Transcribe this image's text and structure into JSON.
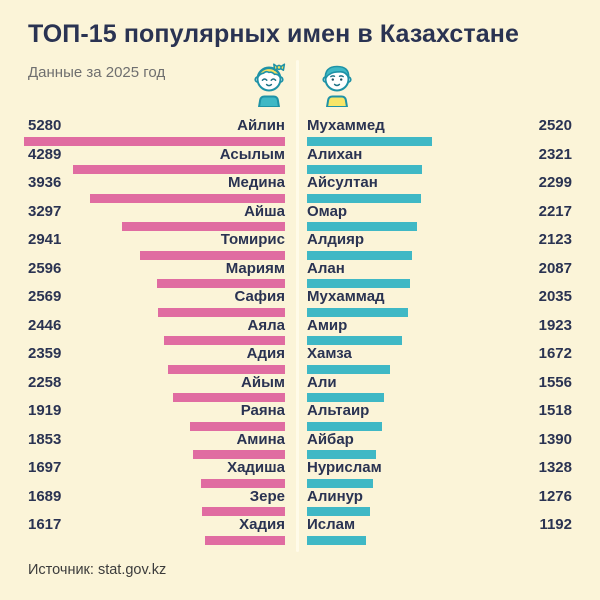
{
  "page": {
    "title": "ТОП-15 популярных имен в Казахстане",
    "subtitle": "Данные за 2025 год",
    "source": "Источник: stat.gov.kz"
  },
  "icons": {
    "left": "baby-girl-icon",
    "right": "baby-boy-icon"
  },
  "colors": {
    "background": "#FBF4D8",
    "divider": "#FFFBE9",
    "girls_bar": "#E06CA1",
    "boys_bar": "#3FB8C5",
    "text": "#2A3352",
    "subtitle_text": "#6F6F6F",
    "source_text": "#3C3C3C"
  },
  "chart_data": {
    "type": "bar",
    "orientation": "horizontal",
    "title": "ТОП-15 популярных имен в Казахстане",
    "subtitle": "Данные за 2025 год",
    "source": "Источник: stat.gov.kz",
    "max_value": 5280,
    "legend": "icons only (girl / boy)",
    "series": [
      {
        "name": "girls",
        "side": "left",
        "color": "#E06CA1",
        "items": [
          {
            "label": "Айлин",
            "value": 5280
          },
          {
            "label": "Асылым",
            "value": 4289
          },
          {
            "label": "Медина",
            "value": 3936
          },
          {
            "label": "Айша",
            "value": 3297
          },
          {
            "label": "Томирис",
            "value": 2941
          },
          {
            "label": "Мариям",
            "value": 2596
          },
          {
            "label": "Сафия",
            "value": 2569
          },
          {
            "label": "Аяла",
            "value": 2446
          },
          {
            "label": "Адия",
            "value": 2359
          },
          {
            "label": "Айым",
            "value": 2258
          },
          {
            "label": "Раяна",
            "value": 1919
          },
          {
            "label": "Амина",
            "value": 1853
          },
          {
            "label": "Хадиша",
            "value": 1697
          },
          {
            "label": "Зере",
            "value": 1689
          },
          {
            "label": "Хадия",
            "value": 1617
          }
        ]
      },
      {
        "name": "boys",
        "side": "right",
        "color": "#3FB8C5",
        "items": [
          {
            "label": "Мухаммед",
            "value": 2520
          },
          {
            "label": "Алихан",
            "value": 2321
          },
          {
            "label": "Айсултан",
            "value": 2299
          },
          {
            "label": "Омар",
            "value": 2217
          },
          {
            "label": "Алдияр",
            "value": 2123
          },
          {
            "label": "Алан",
            "value": 2087
          },
          {
            "label": "Мухаммад",
            "value": 2035
          },
          {
            "label": "Амир",
            "value": 1923
          },
          {
            "label": "Хамза",
            "value": 1672
          },
          {
            "label": "Али",
            "value": 1556
          },
          {
            "label": "Альтаир",
            "value": 1518
          },
          {
            "label": "Айбар",
            "value": 1390
          },
          {
            "label": "Нурислам",
            "value": 1328
          },
          {
            "label": "Алинур",
            "value": 1276
          },
          {
            "label": "Ислам",
            "value": 1192
          }
        ]
      }
    ]
  }
}
